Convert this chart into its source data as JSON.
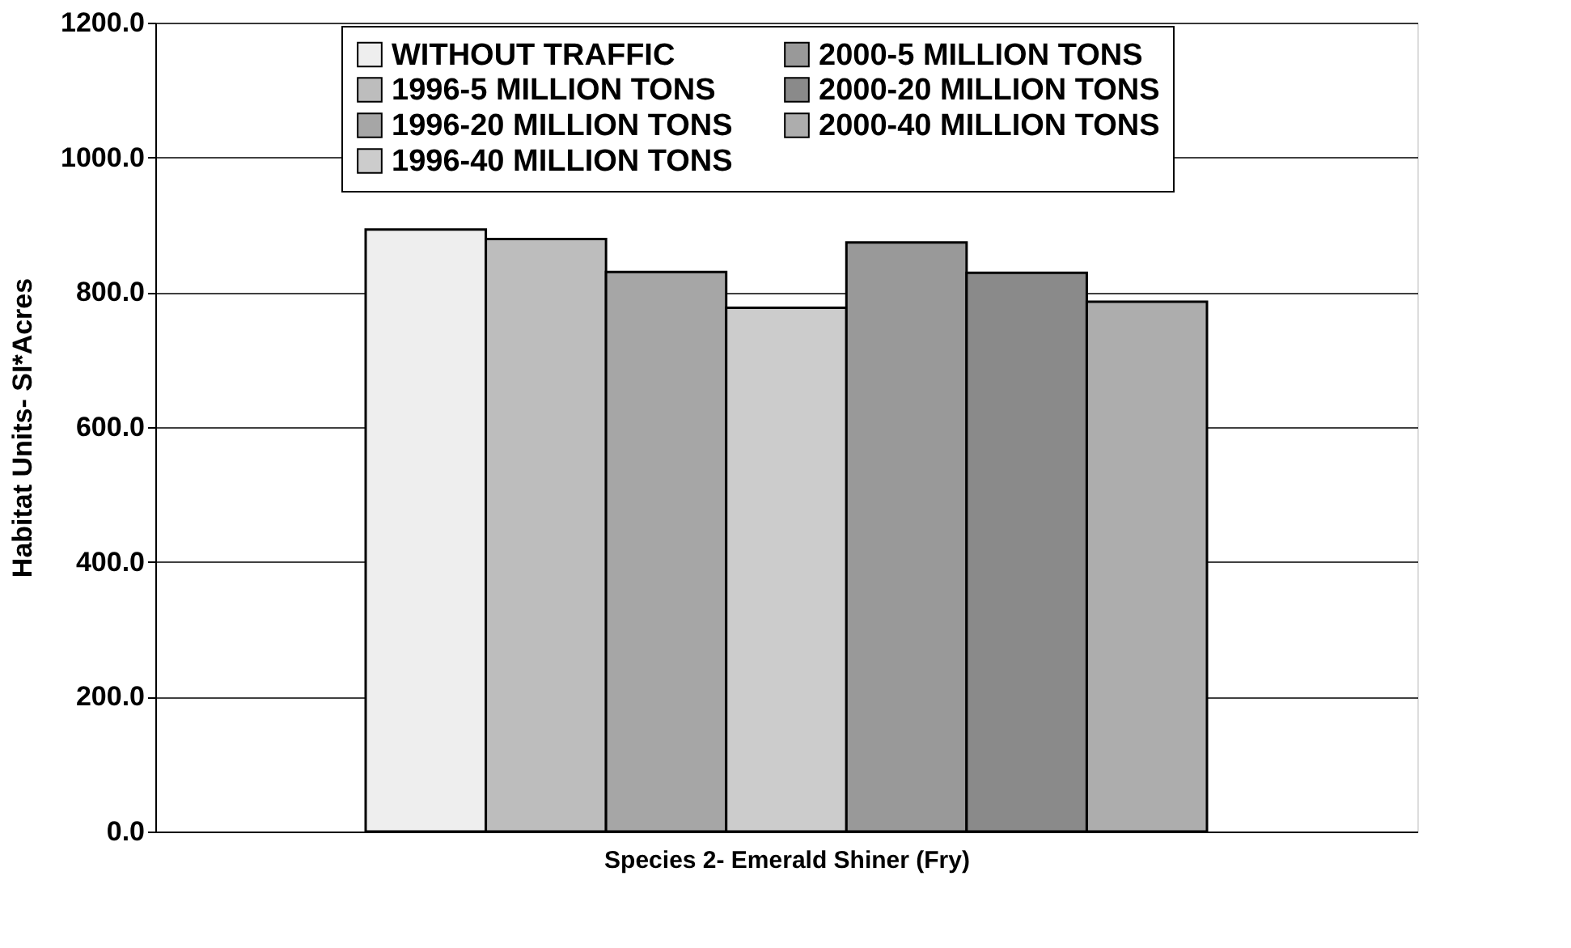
{
  "chart_data": {
    "type": "bar",
    "xlabel": "Species 2- Emerald Shiner (Fry)",
    "ylabel": "Habitat Units- SI*Acres",
    "categories": [
      null
    ],
    "series": [
      {
        "name": "WITHOUT TRAFFIC",
        "color": "#eeeeee",
        "values": [
          893
        ]
      },
      {
        "name": "1996-5 MILLION TONS",
        "color": "#bdbdbd",
        "values": [
          879
        ]
      },
      {
        "name": "1996-20 MILLION TONS",
        "color": "#a6a6a6",
        "values": [
          830
        ]
      },
      {
        "name": "1996-40 MILLION TONS",
        "color": "#cccccc",
        "values": [
          777
        ]
      },
      {
        "name": "2000-5 MILLION TONS",
        "color": "#999999",
        "values": [
          874
        ]
      },
      {
        "name": "2000-20 MILLION TONS",
        "color": "#8a8a8a",
        "values": [
          829
        ]
      },
      {
        "name": "2000-40 MILLION TONS",
        "color": "#adadad",
        "values": [
          786
        ]
      }
    ],
    "ylim": [
      0,
      1200
    ],
    "yticks": [
      {
        "value": 0,
        "label": "0.0"
      },
      {
        "value": 200,
        "label": "200.0"
      },
      {
        "value": 400,
        "label": "400.0"
      },
      {
        "value": 600,
        "label": "600.0"
      },
      {
        "value": 800,
        "label": "800.0"
      },
      {
        "value": 1000,
        "label": "1000.0"
      },
      {
        "value": 1200,
        "label": "1200.0"
      }
    ],
    "grid": "y",
    "legend": "top right"
  }
}
